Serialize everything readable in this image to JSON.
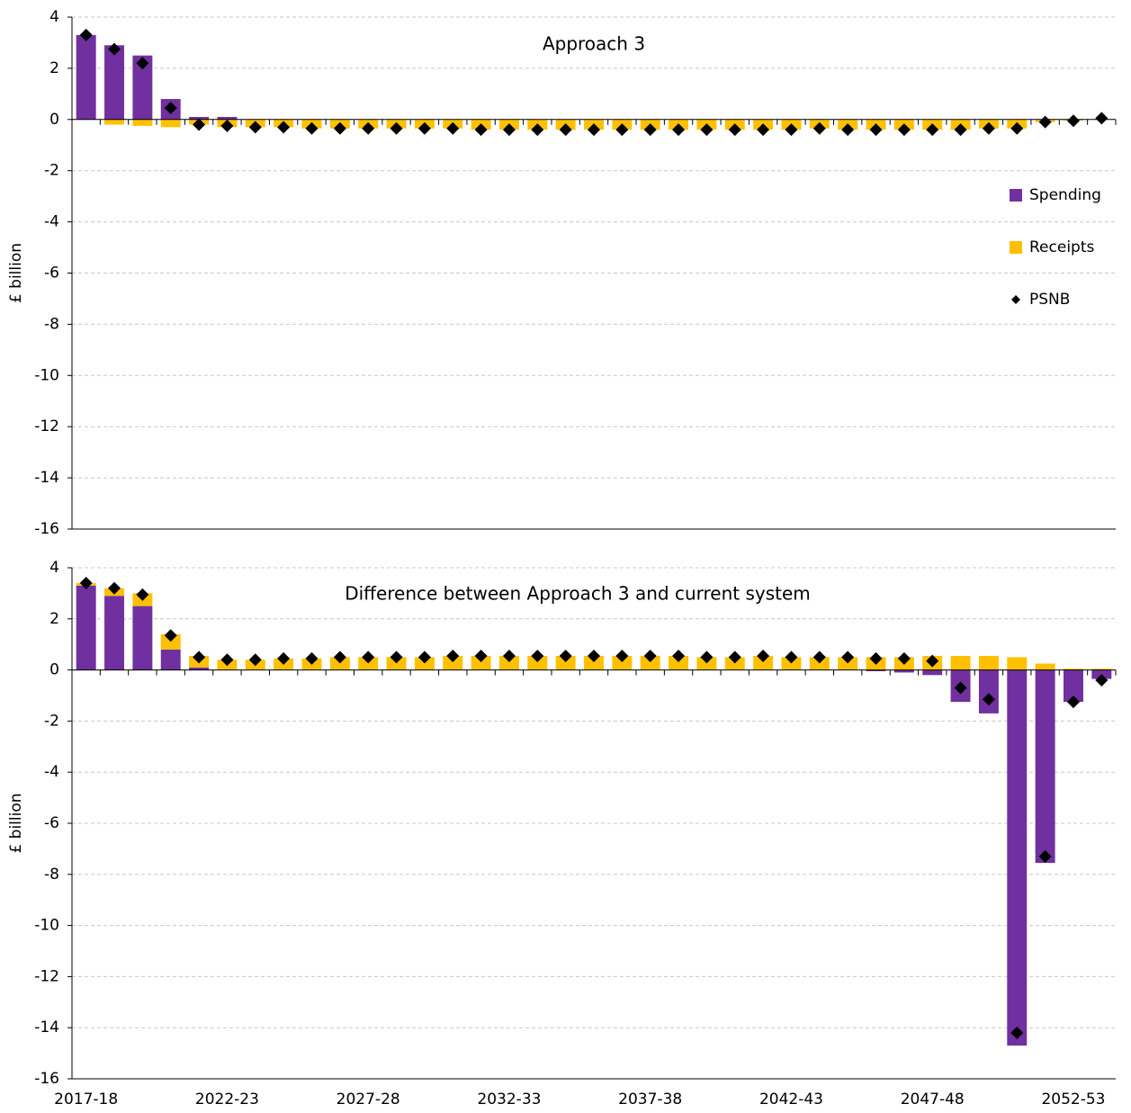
{
  "chart_data": [
    {
      "type": "bar",
      "stacked": true,
      "title": "Approach 3",
      "ylabel": "£ billion",
      "ylim": [
        -16,
        4
      ],
      "yticks": [
        -16,
        -14,
        -12,
        -10,
        -8,
        -6,
        -4,
        -2,
        0,
        2,
        4
      ],
      "grid": true,
      "legend": "right",
      "series": [
        {
          "name": "Spending",
          "type": "bar",
          "color": "#7030a0",
          "values": [
            3.3,
            2.9,
            2.5,
            0.8,
            0.1,
            0.1,
            0,
            0,
            0,
            0,
            0,
            0,
            0,
            0,
            0,
            0,
            0,
            0,
            0,
            0,
            0,
            0,
            0,
            0,
            0,
            0,
            0,
            0,
            0,
            0,
            0,
            0,
            0,
            0,
            0,
            0,
            0
          ]
        },
        {
          "name": "Receipts",
          "type": "bar",
          "color": "#ffc000",
          "values": [
            0,
            -0.2,
            -0.25,
            -0.3,
            -0.2,
            -0.3,
            -0.3,
            -0.3,
            -0.35,
            -0.35,
            -0.35,
            -0.35,
            -0.35,
            -0.35,
            -0.4,
            -0.4,
            -0.4,
            -0.4,
            -0.4,
            -0.4,
            -0.4,
            -0.4,
            -0.4,
            -0.4,
            -0.4,
            -0.4,
            -0.35,
            -0.4,
            -0.4,
            -0.4,
            -0.4,
            -0.4,
            -0.35,
            -0.35,
            -0.1,
            -0.05,
            0
          ]
        },
        {
          "name": "PSNB",
          "type": "scatter",
          "color": "#000000",
          "values": [
            3.3,
            2.75,
            2.2,
            0.45,
            -0.2,
            -0.25,
            -0.3,
            -0.3,
            -0.35,
            -0.35,
            -0.35,
            -0.35,
            -0.35,
            -0.35,
            -0.4,
            -0.4,
            -0.4,
            -0.4,
            -0.4,
            -0.4,
            -0.4,
            -0.4,
            -0.4,
            -0.4,
            -0.4,
            -0.4,
            -0.35,
            -0.4,
            -0.4,
            -0.4,
            -0.4,
            -0.4,
            -0.35,
            -0.35,
            -0.1,
            -0.05,
            0.05
          ]
        }
      ]
    },
    {
      "type": "bar",
      "stacked": true,
      "title": "Difference between Approach 3 and current system",
      "ylabel": "£ billion",
      "ylim": [
        -16,
        4
      ],
      "yticks": [
        -16,
        -14,
        -12,
        -10,
        -8,
        -6,
        -4,
        -2,
        0,
        2,
        4
      ],
      "grid": true,
      "categories": [
        "2017-18",
        null,
        null,
        null,
        null,
        "2022-23",
        null,
        null,
        null,
        null,
        "2027-28",
        null,
        null,
        null,
        null,
        "2032-33",
        null,
        null,
        null,
        null,
        "2037-38",
        null,
        null,
        null,
        null,
        "2042-43",
        null,
        null,
        null,
        null,
        "2047-48",
        null,
        null,
        null,
        null,
        "2052-53",
        null
      ],
      "series": [
        {
          "type": "bar",
          "color": "#7030a0",
          "values": [
            3.3,
            2.9,
            2.5,
            0.8,
            0.1,
            0,
            0,
            0,
            0,
            0,
            0,
            0,
            0,
            0,
            0,
            0,
            0,
            0,
            0,
            0,
            0,
            0,
            0,
            0,
            0,
            0,
            0,
            0,
            -0.05,
            -0.1,
            -0.2,
            -1.25,
            -1.7,
            -14.7,
            -7.55,
            -1.25,
            -0.35
          ]
        },
        {
          "type": "bar",
          "color": "#ffc000",
          "values": [
            0.1,
            0.3,
            0.5,
            0.6,
            0.45,
            0.4,
            0.4,
            0.45,
            0.45,
            0.5,
            0.5,
            0.5,
            0.5,
            0.55,
            0.55,
            0.55,
            0.55,
            0.55,
            0.55,
            0.55,
            0.55,
            0.55,
            0.5,
            0.5,
            0.55,
            0.5,
            0.5,
            0.5,
            0.5,
            0.5,
            0.55,
            0.55,
            0.55,
            0.5,
            0.25,
            0.05,
            0.05
          ]
        },
        {
          "type": "scatter",
          "color": "#000000",
          "values": [
            3.4,
            3.2,
            2.95,
            1.35,
            0.5,
            0.4,
            0.4,
            0.45,
            0.45,
            0.5,
            0.5,
            0.5,
            0.5,
            0.55,
            0.55,
            0.55,
            0.55,
            0.55,
            0.55,
            0.55,
            0.55,
            0.55,
            0.5,
            0.5,
            0.55,
            0.5,
            0.5,
            0.5,
            0.45,
            0.45,
            0.35,
            -0.7,
            -1.15,
            -14.2,
            -7.3,
            -1.25,
            -0.4
          ]
        }
      ]
    }
  ]
}
